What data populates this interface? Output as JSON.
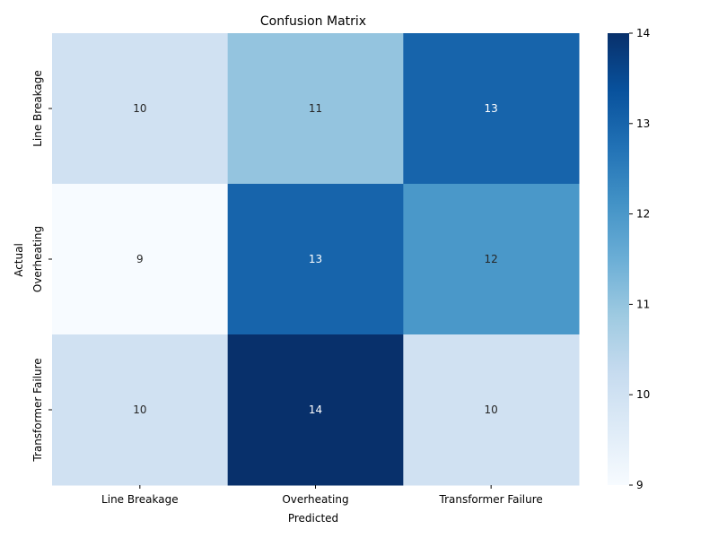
{
  "chart_data": {
    "type": "heatmap",
    "title": "Confusion Matrix",
    "xlabel": "Predicted",
    "ylabel": "Actual",
    "x_categories": [
      "Line Breakage",
      "Overheating",
      "Transformer Failure"
    ],
    "y_categories": [
      "Line Breakage",
      "Overheating",
      "Transformer Failure"
    ],
    "values": [
      [
        10,
        11,
        13
      ],
      [
        9,
        13,
        12
      ],
      [
        10,
        14,
        10
      ]
    ],
    "colormap": "Blues",
    "color_range": [
      9,
      14
    ],
    "colorbar_ticks": [
      9,
      10,
      11,
      12,
      13,
      14
    ],
    "annotations": true,
    "grid": false
  }
}
